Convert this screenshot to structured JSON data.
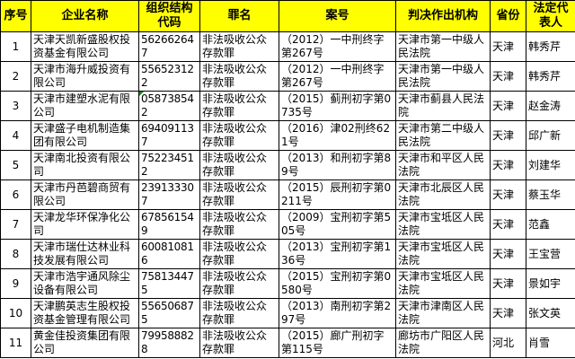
{
  "headers": [
    "序号",
    "企业名称",
    "组织结构代码",
    "罪名",
    "案号",
    "判决作出机构",
    "省份",
    "法定代表人"
  ],
  "rows": [
    [
      "1",
      "天津天凯新盛股权投资基金有限公司",
      "562662647",
      "非法吸收公众存款罪",
      "（2012）一中刑终字第267号",
      "天津市第一中级人民法院",
      "天津",
      "韩秀芹"
    ],
    [
      "2",
      "天津市海升威投资有限公司",
      "556523122",
      "非法吸收公众存款罪",
      "（2012）一中刑终字第267号",
      "天津市第一中级人民法院",
      "天津",
      "韩秀芹"
    ],
    [
      "3",
      "天津市建塑水泥有限公司",
      "058738542",
      "非法吸收公众存款罪",
      "（2015）蓟刑初字第0735号",
      "天津市蓟县人民法院",
      "天津",
      "赵金涛"
    ],
    [
      "4",
      "天津盛子电机制造集团有限公司",
      "694091137",
      "非法吸收公众存款罪",
      "（2016）津02刑终621号",
      "天津市第二中级人民法院",
      "天津",
      "邱广新"
    ],
    [
      "5",
      "天津南北投资有限公司",
      "752234512",
      "非法吸收公众存款罪",
      "（2013）和刑初字第89号",
      "天津市和平区人民法院",
      "天津",
      "刘建华"
    ],
    [
      "6",
      "天津市丹芭碧商贸有限公司",
      "239133307",
      "非法吸收公众存款罪",
      "（2015）辰刑初字第0211号",
      "天津市北辰区人民法院",
      "天津",
      "蔡玉华"
    ],
    [
      "7",
      "天津龙华环保净化公司",
      "678561549",
      "非法吸收公众存款罪",
      "（2009）宝刑初字第505号",
      "天津市宝坻区人民法院",
      "天津",
      "范鑫"
    ],
    [
      "8",
      "天津市瑞仕达林业科技发展有限公司",
      "600810816",
      "非法吸收公众存款罪",
      "（2013）宝刑初字第136号",
      "天津市宝坻区人民法院",
      "天津",
      "王宝营"
    ],
    [
      "9",
      "天津市浩宇通风除尘设备有限公司",
      "758134475",
      "非法吸收公众存款罪",
      "（2015）宝刑初字第0580号",
      "天津市宝坻区人民法院",
      "天津",
      "景如宇"
    ],
    [
      "10",
      "天津鹏英志生股权投资基金管理有限公司",
      "556506875",
      "非法吸收公众存款罪",
      "（2013）南刑初字第297号",
      "天津市津南区人民法院",
      "天津",
      "张文英"
    ],
    [
      "11",
      "黄金佳投资集团有限公司",
      "799588828",
      "非法吸收公众存款罪",
      "（2015）廊广刑初字第115号",
      "廊坊市广阳区人民法院",
      "河北",
      "肖雪"
    ]
  ],
  "colors": {
    "header_bg": "#ffff00",
    "error_marker": "#1a8a1a"
  }
}
